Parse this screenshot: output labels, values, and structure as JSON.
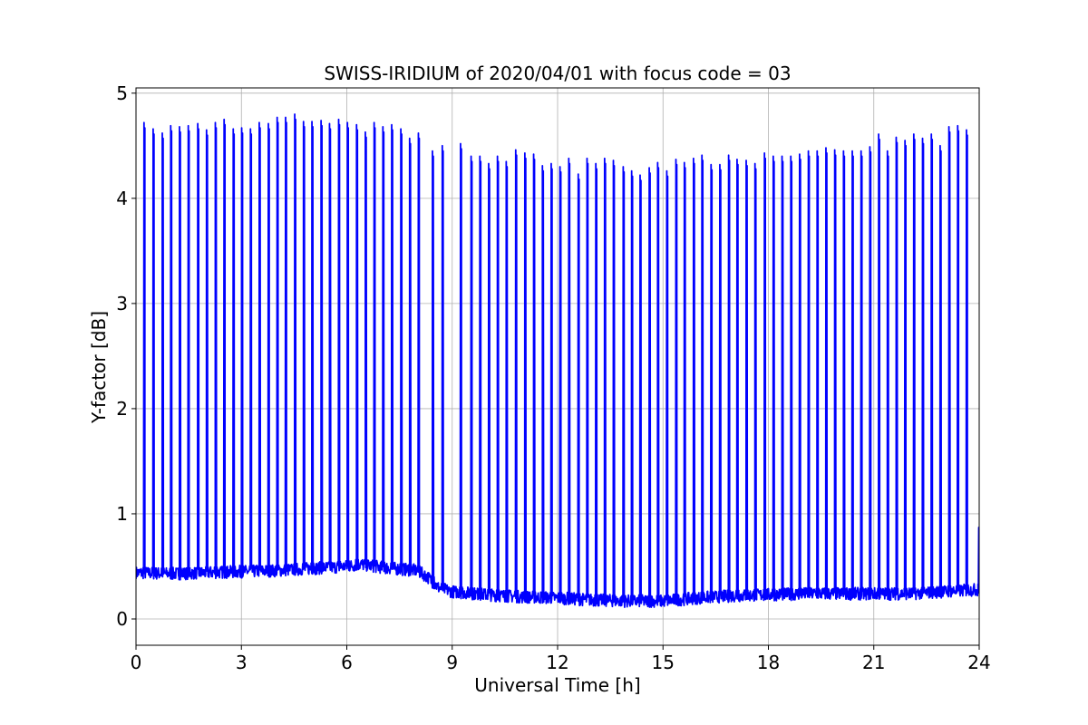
{
  "chart_data": {
    "type": "line",
    "title": "SWISS-IRIDIUM of 2020/04/01 with focus code = 03",
    "xlabel": "Universal Time [h]",
    "ylabel": "Y-factor [dB]",
    "xlim": [
      0,
      24
    ],
    "ylim": [
      -0.25,
      5.05
    ],
    "xticks": [
      0,
      3,
      6,
      9,
      12,
      15,
      18,
      21,
      24
    ],
    "yticks": [
      0,
      1,
      2,
      3,
      4,
      5
    ],
    "grid": true,
    "legend": "none",
    "series": [
      {
        "color": "#0000ff",
        "baseline": {
          "x": [
            0,
            1,
            2,
            3,
            4,
            5,
            6,
            6.4,
            7,
            8,
            8.3,
            8.6,
            9,
            10,
            11,
            12,
            13,
            14,
            15,
            16,
            17,
            18,
            19,
            20,
            21,
            22,
            23,
            24
          ],
          "y": [
            0.44,
            0.43,
            0.44,
            0.45,
            0.46,
            0.48,
            0.5,
            0.52,
            0.49,
            0.46,
            0.4,
            0.3,
            0.26,
            0.23,
            0.21,
            0.2,
            0.18,
            0.17,
            0.17,
            0.2,
            0.22,
            0.23,
            0.24,
            0.24,
            0.24,
            0.24,
            0.26,
            0.28
          ],
          "noise_amplitude": 0.06
        },
        "peaks": {
          "x": [
            0.24,
            0.5,
            0.76,
            1.0,
            1.25,
            1.5,
            1.77,
            2.02,
            2.27,
            2.52,
            2.78,
            3.02,
            3.27,
            3.52,
            3.78,
            4.03,
            4.27,
            4.53,
            4.78,
            5.02,
            5.28,
            5.52,
            5.78,
            6.03,
            6.29,
            6.54,
            6.79,
            7.04,
            7.29,
            7.55,
            7.8,
            8.05,
            8.45,
            8.73,
            9.25,
            9.55,
            9.8,
            10.05,
            10.3,
            10.55,
            10.82,
            11.08,
            11.33,
            11.58,
            11.83,
            12.08,
            12.33,
            12.6,
            12.85,
            13.1,
            13.35,
            13.6,
            13.88,
            14.12,
            14.36,
            14.62,
            14.86,
            15.12,
            15.38,
            15.62,
            15.88,
            16.12,
            16.38,
            16.63,
            16.88,
            17.12,
            17.38,
            17.63,
            17.9,
            18.15,
            18.4,
            18.65,
            18.9,
            19.15,
            19.4,
            19.65,
            19.9,
            20.15,
            20.4,
            20.65,
            20.9,
            21.15,
            21.4,
            21.65,
            21.9,
            22.15,
            22.4,
            22.65,
            22.9,
            23.15,
            23.4,
            23.65,
            24.0
          ],
          "y": [
            4.72,
            4.66,
            4.62,
            4.69,
            4.68,
            4.69,
            4.71,
            4.65,
            4.72,
            4.75,
            4.66,
            4.67,
            4.66,
            4.72,
            4.71,
            4.77,
            4.77,
            4.8,
            4.73,
            4.73,
            4.74,
            4.71,
            4.75,
            4.72,
            4.7,
            4.63,
            4.72,
            4.68,
            4.7,
            4.66,
            4.57,
            4.62,
            4.45,
            4.5,
            4.52,
            4.4,
            4.4,
            4.33,
            4.4,
            4.35,
            4.46,
            4.43,
            4.42,
            4.31,
            4.33,
            4.3,
            4.38,
            4.23,
            4.38,
            4.33,
            4.38,
            4.36,
            4.3,
            4.26,
            4.22,
            4.29,
            4.34,
            4.26,
            4.37,
            4.34,
            4.38,
            4.41,
            4.32,
            4.32,
            4.41,
            4.37,
            4.36,
            4.33,
            4.43,
            4.4,
            4.4,
            4.4,
            4.42,
            4.45,
            4.45,
            4.48,
            4.46,
            4.45,
            4.45,
            4.45,
            4.49,
            4.61,
            4.45,
            4.58,
            4.55,
            4.61,
            4.57,
            4.61,
            4.5,
            4.68,
            4.69,
            4.65,
            0.87
          ]
        }
      }
    ]
  }
}
